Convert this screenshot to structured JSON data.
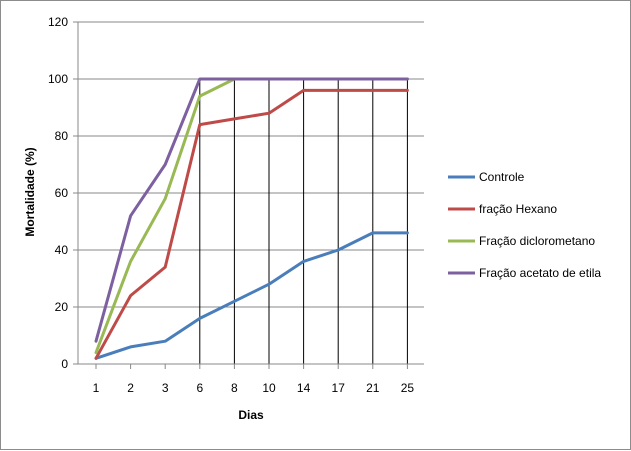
{
  "chart_data": {
    "type": "line",
    "title": "",
    "xlabel": "Dias",
    "ylabel": "Mortalidade (%)",
    "categories": [
      "1",
      "2",
      "3",
      "6",
      "8",
      "10",
      "14",
      "17",
      "21",
      "25"
    ],
    "ylim": [
      0,
      120
    ],
    "yticks": [
      0,
      20,
      40,
      60,
      80,
      100,
      120
    ],
    "grid": "horizontal",
    "legend_position": "right",
    "series": [
      {
        "name": "Controle",
        "color": "#4a7ebb",
        "values": [
          2,
          6,
          8,
          16,
          22,
          28,
          36,
          40,
          46,
          46
        ]
      },
      {
        "name": "fração Hexano",
        "color": "#be4b48",
        "values": [
          2,
          24,
          34,
          84,
          86,
          88,
          96,
          96,
          96,
          96
        ]
      },
      {
        "name": "Fração diclorometano",
        "color": "#98b954",
        "values": [
          4,
          36,
          58,
          94,
          100,
          100,
          100,
          100,
          100,
          100
        ]
      },
      {
        "name": "Fração acetato de etila",
        "color": "#7d60a0",
        "values": [
          8,
          52,
          70,
          100,
          100,
          100,
          100,
          100,
          100,
          100
        ]
      }
    ]
  }
}
